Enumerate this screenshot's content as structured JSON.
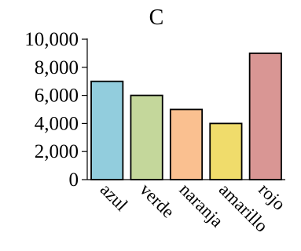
{
  "chart_data": {
    "type": "bar",
    "title": "C",
    "xlabel": "",
    "ylabel": "",
    "categories": [
      "azul",
      "verde",
      "naranja",
      "amarillo",
      "rojo"
    ],
    "values": [
      7000,
      6000,
      5000,
      4000,
      9000
    ],
    "colors": [
      "#92cddd",
      "#c4d79b",
      "#fac090",
      "#f0dc6b",
      "#d99694"
    ],
    "edge_color": "#000000",
    "ylim": [
      0,
      10000
    ],
    "yticks": [
      0,
      2000,
      4000,
      6000,
      8000,
      10000
    ],
    "ytick_labels": [
      "0",
      "2,000",
      "4,000",
      "6,000",
      "8,000",
      "10,000"
    ],
    "grid": false,
    "legend": "none"
  }
}
